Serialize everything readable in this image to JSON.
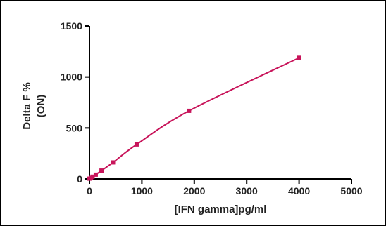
{
  "chart_data": {
    "type": "scatter",
    "xlabel": "[IFN gamma]pg/ml",
    "ylabel_lines": [
      "Delta F %",
      "(ON)"
    ],
    "xlim": [
      0,
      5000
    ],
    "ylim": [
      0,
      1500
    ],
    "x_ticks": [
      0,
      1000,
      2000,
      3000,
      4000,
      5000
    ],
    "y_ticks": [
      0,
      500,
      1000,
      1500
    ],
    "grid": false,
    "series": [
      {
        "x": [
          0,
          30,
          60,
          120,
          230,
          450,
          900,
          1900,
          4000
        ],
        "y": [
          3,
          10,
          22,
          42,
          82,
          162,
          338,
          668,
          1188
        ],
        "color": "#c8145a",
        "fit_curve": true
      }
    ]
  }
}
